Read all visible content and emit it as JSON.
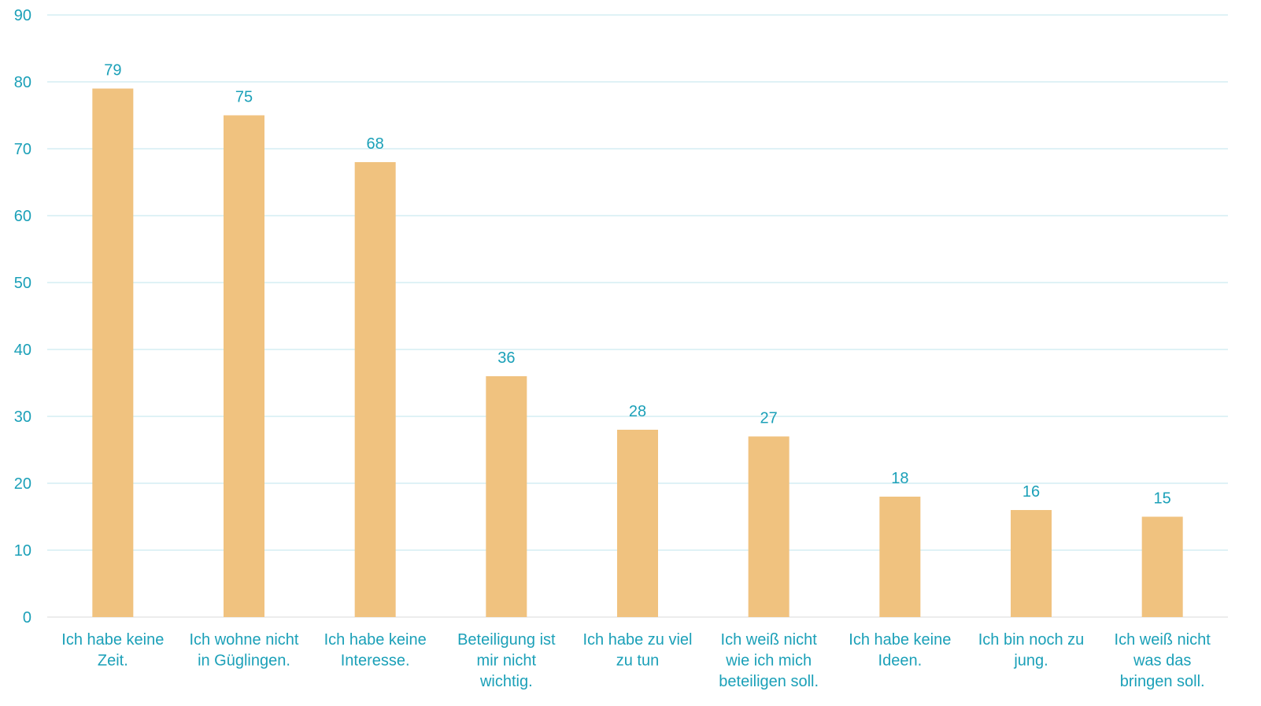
{
  "colors": {
    "bar": "#F0C27F",
    "text": "#1BA0B8",
    "grid": "#BFE6EE",
    "axis": "#D9D9D9"
  },
  "chart_data": {
    "type": "bar",
    "categories": [
      [
        "Ich habe keine",
        "Zeit."
      ],
      [
        "Ich wohne nicht",
        "in Güglingen."
      ],
      [
        "Ich habe keine",
        "Interesse."
      ],
      [
        "Beteiligung ist",
        "mir nicht",
        "wichtig."
      ],
      [
        "Ich habe zu viel",
        "zu tun"
      ],
      [
        "Ich weiß nicht",
        "wie ich mich",
        "beteiligen soll."
      ],
      [
        "Ich habe keine",
        "Ideen."
      ],
      [
        "Ich bin noch zu",
        "jung."
      ],
      [
        "Ich weiß nicht",
        "was das",
        "bringen soll."
      ]
    ],
    "values": [
      79,
      75,
      68,
      36,
      28,
      27,
      18,
      16,
      15
    ],
    "ylim": [
      0,
      90
    ],
    "yticks": [
      0,
      10,
      20,
      30,
      40,
      50,
      60,
      70,
      80,
      90
    ],
    "grid": true,
    "data_labels": true,
    "title": "",
    "xlabel": "",
    "ylabel": ""
  }
}
